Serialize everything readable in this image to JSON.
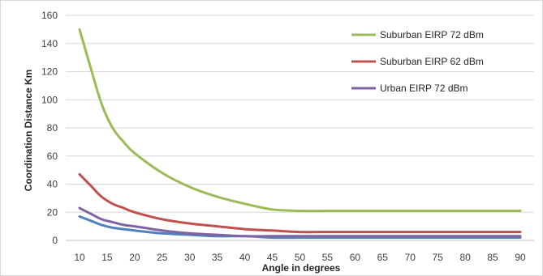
{
  "chart_data": {
    "type": "line",
    "title": "",
    "xlabel": "Angle in degrees",
    "ylabel": "Coordination Distance Km",
    "xticks": [
      10,
      15,
      20,
      25,
      30,
      35,
      40,
      45,
      50,
      55,
      60,
      65,
      70,
      75,
      80,
      85,
      90
    ],
    "yticks": [
      0,
      20,
      40,
      60,
      80,
      100,
      120,
      140,
      160
    ],
    "xlim": [
      10,
      90
    ],
    "ylim": [
      0,
      160
    ],
    "grid": "horizontal",
    "legend_position": "right",
    "series": [
      {
        "name": "Suburban EIRP 72 dBm",
        "color": "#9BBB59",
        "x": [
          10,
          12,
          14,
          16,
          18,
          20,
          25,
          30,
          35,
          40,
          45,
          50,
          55,
          60,
          65,
          70,
          75,
          80,
          85,
          90
        ],
        "y": [
          150,
          123,
          97,
          80,
          70,
          62,
          48,
          38,
          31,
          26,
          22,
          21,
          21,
          21,
          21,
          21,
          21,
          21,
          21,
          21
        ]
      },
      {
        "name": "Suburban EIRP 62 dBm",
        "color": "#C0504D",
        "x": [
          10,
          12,
          14,
          16,
          18,
          20,
          25,
          30,
          35,
          40,
          45,
          50,
          55,
          60,
          65,
          70,
          75,
          80,
          85,
          90
        ],
        "y": [
          47,
          39,
          31,
          26,
          23,
          20,
          15,
          12,
          10,
          8,
          7,
          6,
          6,
          6,
          6,
          6,
          6,
          6,
          6,
          6
        ]
      },
      {
        "name": "Urban EIRP 72 dBm",
        "color": "#8064A2",
        "x": [
          10,
          12,
          14,
          16,
          18,
          20,
          25,
          30,
          35,
          40,
          45,
          50,
          55,
          60,
          65,
          70,
          75,
          80,
          85,
          90
        ],
        "y": [
          23,
          19,
          15,
          13,
          11,
          10,
          7,
          5,
          4,
          3,
          3,
          3,
          3,
          3,
          3,
          3,
          3,
          3,
          3,
          3
        ]
      },
      {
        "color": "#4F81BD",
        "x": [
          10,
          12,
          14,
          16,
          18,
          20,
          25,
          30,
          35,
          40,
          45,
          50,
          55,
          60,
          65,
          70,
          75,
          80,
          85,
          90
        ],
        "y": [
          17,
          14,
          11,
          9,
          8,
          7,
          5,
          4,
          3,
          3,
          2,
          2,
          2,
          2,
          2,
          2,
          2,
          2,
          2,
          2
        ]
      }
    ]
  }
}
